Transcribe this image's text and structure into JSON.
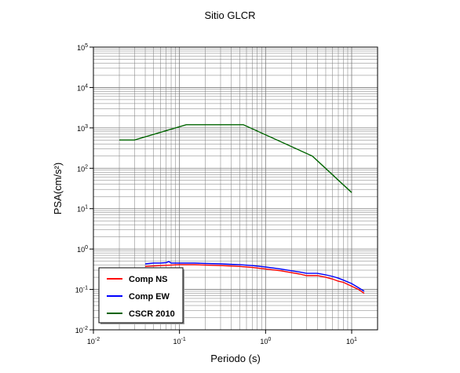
{
  "chart_data": {
    "type": "line",
    "title": "Sitio GLCR",
    "xlabel": "Periodo (s)",
    "ylabel": "PSA(cm/s²)",
    "xscale": "log",
    "yscale": "log",
    "xlim": [
      0.01,
      20
    ],
    "ylim": [
      0.01,
      100000
    ],
    "grid": true,
    "legend_position": "bottom-left",
    "x_ticks": [
      {
        "base": "10",
        "exp": "-2"
      },
      {
        "base": "10",
        "exp": "-1"
      },
      {
        "base": "10",
        "exp": "0"
      },
      {
        "base": "10",
        "exp": "1"
      }
    ],
    "y_ticks": [
      {
        "base": "10",
        "exp": "-2"
      },
      {
        "base": "10",
        "exp": "-1"
      },
      {
        "base": "10",
        "exp": "0"
      },
      {
        "base": "10",
        "exp": "1"
      },
      {
        "base": "10",
        "exp": "2"
      },
      {
        "base": "10",
        "exp": "3"
      },
      {
        "base": "10",
        "exp": "4"
      },
      {
        "base": "10",
        "exp": "5"
      }
    ],
    "series": [
      {
        "name": "Comp NS",
        "color": "#ff0000",
        "x": [
          0.04,
          0.06,
          0.08,
          0.1,
          0.15,
          0.2,
          0.3,
          0.5,
          0.7,
          1.0,
          1.5,
          2.0,
          2.5,
          3.0,
          3.5,
          4.0,
          5.0,
          6.0,
          7.0,
          8.0,
          10.0,
          12.0,
          14.0
        ],
        "y": [
          0.37,
          0.39,
          0.4,
          0.41,
          0.41,
          0.4,
          0.39,
          0.37,
          0.35,
          0.32,
          0.29,
          0.26,
          0.24,
          0.22,
          0.22,
          0.22,
          0.2,
          0.18,
          0.16,
          0.15,
          0.12,
          0.1,
          0.08
        ]
      },
      {
        "name": "Comp EW",
        "color": "#0000ff",
        "x": [
          0.04,
          0.05,
          0.06,
          0.07,
          0.075,
          0.08,
          0.1,
          0.15,
          0.2,
          0.3,
          0.5,
          0.7,
          1.0,
          1.5,
          2.0,
          2.5,
          3.0,
          3.5,
          4.0,
          5.0,
          6.0,
          7.0,
          8.0,
          10.0,
          12.0,
          14.0
        ],
        "y": [
          0.43,
          0.45,
          0.45,
          0.46,
          0.49,
          0.45,
          0.45,
          0.45,
          0.44,
          0.43,
          0.41,
          0.39,
          0.36,
          0.32,
          0.29,
          0.27,
          0.25,
          0.25,
          0.25,
          0.23,
          0.21,
          0.19,
          0.17,
          0.14,
          0.11,
          0.09
        ]
      },
      {
        "name": "CSCR 2010",
        "color": "#006400",
        "x": [
          0.02,
          0.03,
          0.12,
          0.55,
          3.5,
          10.0
        ],
        "y": [
          500,
          500,
          1200,
          1200,
          200,
          25
        ]
      }
    ]
  }
}
